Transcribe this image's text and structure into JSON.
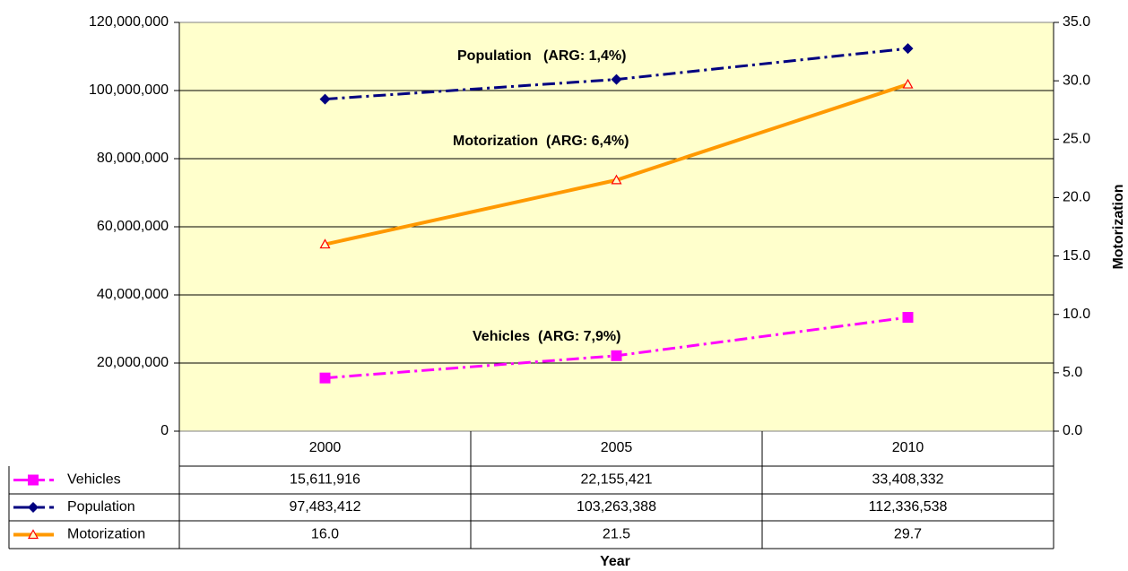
{
  "chart_data": {
    "type": "line",
    "x_label": "Year",
    "y2_label": "Motorization",
    "categories": [
      "2000",
      "2005",
      "2010"
    ],
    "series": [
      {
        "name": "Vehicles",
        "color": "#ff00ff",
        "marker": "square",
        "line_style": "dashdot",
        "axis": "y",
        "values": [
          15611916,
          22155421,
          33408332
        ],
        "value_labels": [
          "15,611,916",
          "22,155,421",
          "33,408,332"
        ]
      },
      {
        "name": "Population",
        "color": "#000080",
        "marker": "diamond",
        "line_style": "dashdot",
        "axis": "y",
        "values": [
          97483412,
          103263388,
          112336538
        ],
        "value_labels": [
          "97,483,412",
          "103,263,388",
          "112,336,538"
        ]
      },
      {
        "name": "Motorization",
        "color": "#ff9900",
        "marker_color": "#ff0000",
        "marker": "triangle",
        "line_style": "solid",
        "axis": "y2",
        "values": [
          16.0,
          21.5,
          29.7
        ],
        "value_labels": [
          "16.0",
          "21.5",
          "29.7"
        ]
      }
    ],
    "annotations": [
      "Population   (ARG: 1,4%)",
      "Motorization  (ARG: 6,4%)",
      "Vehicles  (ARG: 7,9%)"
    ],
    "ylim": [
      0,
      120000000
    ],
    "yticks": [
      0,
      {
        "value": 20000000,
        "label": "20,000,000"
      },
      {
        "value": 40000000,
        "label": "40,000,000"
      },
      {
        "value": 60000000,
        "label": "60,000,000"
      },
      {
        "value": 80000000,
        "label": "80,000,000"
      },
      {
        "value": 100000000,
        "label": "100,000,000"
      },
      {
        "value": 120000000,
        "label": "120,000,000"
      }
    ],
    "y2lim": [
      0,
      35
    ],
    "y2ticks": [
      {
        "value": 0,
        "label": "0.0"
      },
      {
        "value": 5,
        "label": "5.0"
      },
      {
        "value": 10,
        "label": "10.0"
      },
      {
        "value": 15,
        "label": "15.0"
      },
      {
        "value": 20,
        "label": "20.0"
      },
      {
        "value": 25,
        "label": "25.0"
      },
      {
        "value": 30,
        "label": "30.0"
      },
      {
        "value": 35,
        "label": "35.0"
      }
    ],
    "grid": true,
    "plot_background": "#ffffcc"
  }
}
